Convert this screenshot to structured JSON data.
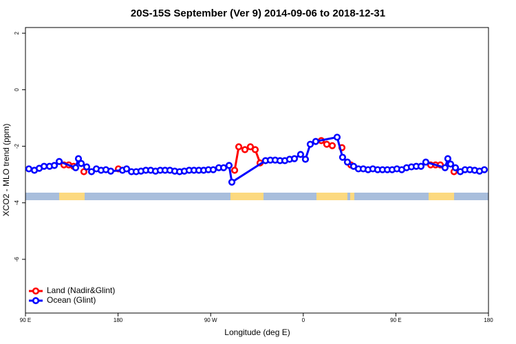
{
  "chart_data": {
    "type": "line",
    "title": "20S-15S September (Ver 9)   2014-09-06 to 2018-12-31",
    "x_label": "Longitude (deg E)",
    "y_label": "XCO2 - MLO trend (ppm)",
    "xlim": [
      90,
      540
    ],
    "xticks": [
      {
        "value": 90,
        "label": "90 E"
      },
      180,
      {
        "value": 270,
        "label": "90 W"
      },
      {
        "value": 360,
        "label": "0"
      },
      {
        "value": 450,
        "label": "90 E"
      },
      {
        "value": 540,
        "label": "180"
      }
    ],
    "ylim": [
      -7.9,
      2.2
    ],
    "yticks": [
      -6,
      -4,
      -2,
      0,
      2
    ],
    "legend": "bottomleft",
    "series": [
      {
        "name": "Land (Nadir&Glint)",
        "color": "#ff0000",
        "x": [
          127.4,
          132.1,
          136.8,
          138.8,
          146.8,
          149.5,
          180.3,
          184.3,
          293.3,
          297.3,
          303.3,
          308.6,
          313.3,
          318.0,
          323.3,
          377.5,
          382.8,
          388.2,
          392.9,
          397.6,
          398.2,
          406.2,
          408.9,
          483.8,
          488.5,
          493.2,
          497.8,
          506.5
        ],
        "values": [
          -2.66,
          -2.66,
          -2.71,
          null,
          -2.9,
          null,
          -2.8,
          null,
          -2.85,
          -2.02,
          -2.12,
          -2.02,
          -2.12,
          -2.59,
          null,
          -1.8,
          -1.93,
          -1.98,
          null,
          -2.05,
          null,
          -2.66,
          null,
          -2.66,
          -2.66,
          -2.66,
          null,
          -2.9
        ]
      },
      {
        "name": "Ocean (Glint)",
        "color": "#0000ff",
        "x": [
          93.3,
          98.7,
          103.4,
          108.1,
          113.4,
          118.1,
          122.8,
          138.8,
          141.5,
          144.2,
          149.5,
          154.2,
          158.9,
          163.5,
          168.2,
          172.9,
          184.3,
          188.3,
          193.0,
          197.6,
          202.3,
          207.0,
          211.7,
          216.4,
          221.0,
          225.7,
          230.4,
          235.1,
          239.8,
          244.4,
          249.1,
          253.8,
          258.5,
          263.2,
          267.8,
          272.5,
          277.9,
          282.6,
          287.9,
          290.6,
          323.3,
          328.0,
          332.7,
          337.4,
          342.1,
          346.7,
          351.4,
          357.4,
          362.1,
          366.8,
          372.1,
          392.9,
          398.2,
          402.9,
          408.9,
          413.6,
          418.3,
          423.0,
          427.6,
          432.3,
          437.0,
          441.7,
          446.4,
          451.0,
          455.7,
          460.4,
          465.1,
          469.8,
          474.4,
          479.1,
          497.8,
          500.5,
          503.2,
          507.9,
          512.6,
          517.2,
          521.9,
          526.6,
          531.3,
          536.0
        ],
        "values": [
          -2.8,
          -2.85,
          -2.78,
          -2.71,
          -2.71,
          -2.68,
          -2.54,
          -2.76,
          -2.44,
          -2.61,
          -2.73,
          -2.9,
          -2.8,
          -2.85,
          -2.83,
          -2.88,
          -2.85,
          -2.8,
          -2.9,
          -2.9,
          -2.88,
          -2.85,
          -2.85,
          -2.88,
          -2.85,
          -2.85,
          -2.85,
          -2.88,
          -2.9,
          -2.88,
          -2.85,
          -2.85,
          -2.85,
          -2.85,
          -2.83,
          -2.83,
          -2.76,
          -2.76,
          -2.68,
          -3.27,
          -2.51,
          -2.49,
          -2.49,
          -2.51,
          -2.51,
          -2.46,
          -2.44,
          -2.29,
          -2.46,
          -1.93,
          -1.83,
          -1.68,
          -2.39,
          -2.56,
          -2.71,
          -2.8,
          -2.8,
          -2.83,
          -2.8,
          -2.83,
          -2.83,
          -2.83,
          -2.83,
          -2.8,
          -2.83,
          -2.76,
          -2.73,
          -2.71,
          -2.71,
          -2.56,
          -2.76,
          -2.44,
          -2.63,
          -2.76,
          -2.9,
          -2.83,
          -2.83,
          -2.85,
          -2.88,
          -2.83
        ]
      }
    ]
  }
}
